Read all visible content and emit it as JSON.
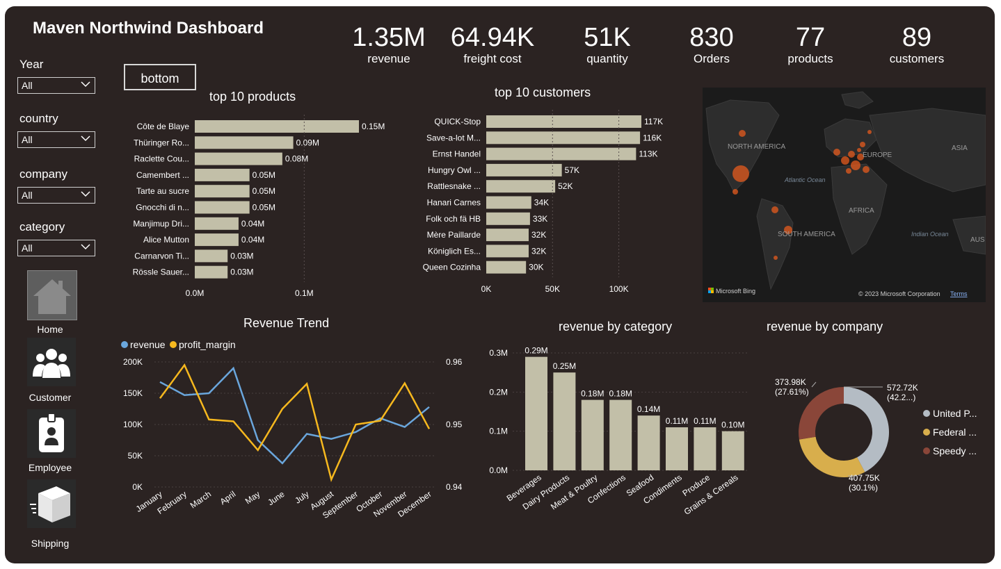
{
  "dashboard": {
    "title": "Maven Northwind Dashboard",
    "bottom_button": "bottom",
    "colors": {
      "bar": "#c2bfa8",
      "background": "#2b2322",
      "revenue_line": "#6aa6dc",
      "profit_line": "#f6b81e",
      "map_bubble": "#e55b1d"
    }
  },
  "kpis": [
    {
      "value": "1.35M",
      "label": "revenue"
    },
    {
      "value": "64.94K",
      "label": "freight cost"
    },
    {
      "value": "51K",
      "label": "quantity"
    },
    {
      "value": "830",
      "label": "Orders"
    },
    {
      "value": "77",
      "label": "products"
    },
    {
      "value": "89",
      "label": "customers"
    }
  ],
  "filters": [
    {
      "label": "Year",
      "value": "All"
    },
    {
      "label": "country",
      "value": "All"
    },
    {
      "label": "company",
      "value": "All"
    },
    {
      "label": "category",
      "value": "All"
    }
  ],
  "nav": [
    {
      "label": "Home",
      "icon": "home-icon"
    },
    {
      "label": "Customer",
      "icon": "customers-icon"
    },
    {
      "label": "Employee",
      "icon": "employee-badge-icon"
    },
    {
      "label": "Shipping",
      "icon": "shipping-box-icon"
    }
  ],
  "map": {
    "labels": {
      "north_america": "NORTH AMERICA",
      "europe": "EUROPE",
      "asia": "ASIA",
      "africa": "AFRICA",
      "south_america": "SOUTH AMERICA",
      "atlantic": "Atlantic Ocean",
      "indian": "Indian Ocean",
      "aus": "AUS"
    },
    "bing": "Microsoft Bing",
    "copyright": "© 2023 Microsoft Corporation",
    "terms": "Terms"
  },
  "chart_data": [
    {
      "id": "top-products",
      "type": "bar",
      "orientation": "horizontal",
      "title": "top 10 products",
      "categories": [
        "Côte de Blaye",
        "Thüringer Ro...",
        "Raclette Cou...",
        "Camembert ...",
        "Tarte au sucre",
        "Gnocchi di n...",
        "Manjimup Dri...",
        "Alice Mutton",
        "Carnarvon Ti...",
        "Rössle Sauer..."
      ],
      "values": [
        0.15,
        0.09,
        0.08,
        0.05,
        0.05,
        0.05,
        0.04,
        0.04,
        0.03,
        0.03
      ],
      "data_labels": [
        "0.15M",
        "0.09M",
        "0.08M",
        "0.05M",
        "0.05M",
        "0.05M",
        "0.04M",
        "0.04M",
        "0.03M",
        "0.03M"
      ],
      "xticks": [
        "0.0M",
        "0.1M"
      ],
      "xlim": [
        0,
        0.15
      ]
    },
    {
      "id": "top-customers",
      "type": "bar",
      "orientation": "horizontal",
      "title": "top 10 customers",
      "categories": [
        "QUICK-Stop",
        "Save-a-lot M...",
        "Ernst Handel",
        "Hungry Owl ...",
        "Rattlesnake ...",
        "Hanari Carnes",
        "Folk och fä HB",
        "Mère Paillarde",
        "Königlich Es...",
        "Queen Cozinha"
      ],
      "values": [
        117,
        116,
        113,
        57,
        52,
        34,
        33,
        32,
        32,
        30
      ],
      "data_labels": [
        "117K",
        "116K",
        "113K",
        "57K",
        "52K",
        "34K",
        "33K",
        "32K",
        "32K",
        "30K"
      ],
      "xticks": [
        "0K",
        "50K",
        "100K"
      ],
      "xlim": [
        0,
        117
      ]
    },
    {
      "id": "revenue-trend",
      "type": "line",
      "title": "Revenue Trend",
      "categories": [
        "January",
        "February",
        "March",
        "April",
        "May",
        "June",
        "July",
        "August",
        "September",
        "October",
        "November",
        "December"
      ],
      "series": [
        {
          "name": "revenue",
          "axis": "left",
          "values": [
            168,
            147,
            150,
            190,
            75,
            38,
            85,
            77,
            88,
            110,
            96,
            128
          ]
        },
        {
          "name": "profit_margin",
          "axis": "right",
          "values": [
            0.9542,
            0.9595,
            0.9508,
            0.9505,
            0.9459,
            0.9525,
            0.9565,
            0.9412,
            0.95,
            0.9506,
            0.9566,
            0.9493
          ]
        }
      ],
      "yticks_left": [
        "200K",
        "150K",
        "100K",
        "50K",
        "0K"
      ],
      "ylim_left": [
        0,
        200
      ],
      "yticks_right": [
        "0.96",
        "0.95",
        "0.94"
      ],
      "ylim_right": [
        0.94,
        0.96
      ],
      "legend": "top-left"
    },
    {
      "id": "revenue-by-category",
      "type": "bar",
      "title": "revenue by category",
      "categories": [
        "Beverages",
        "Dairy Products",
        "Meat & Poultry",
        "Confections",
        "Seafood",
        "Condiments",
        "Produce",
        "Grains & Cereals"
      ],
      "values": [
        0.29,
        0.25,
        0.18,
        0.18,
        0.14,
        0.11,
        0.11,
        0.1
      ],
      "data_labels": [
        "0.29M",
        "0.25M",
        "0.18M",
        "0.18M",
        "0.14M",
        "0.11M",
        "0.11M",
        "0.10M"
      ],
      "yticks": [
        "0.3M",
        "0.2M",
        "0.1M",
        "0.0M"
      ],
      "ylim": [
        0,
        0.3
      ]
    },
    {
      "id": "revenue-by-company",
      "type": "pie",
      "title": "revenue by company",
      "slices": [
        {
          "name": "United P...",
          "value": 572.72,
          "label": "572.72K",
          "pct": "(42.2...)",
          "color": "#b4bcc4"
        },
        {
          "name": "Federal ...",
          "value": 407.75,
          "label": "407.75K",
          "pct": "(30.1%)",
          "color": "#d8ae4c"
        },
        {
          "name": "Speedy ...",
          "value": 373.98,
          "label": "373.98K",
          "pct": "(27.61%)",
          "color": "#8a4639"
        }
      ],
      "legend": "right"
    }
  ]
}
